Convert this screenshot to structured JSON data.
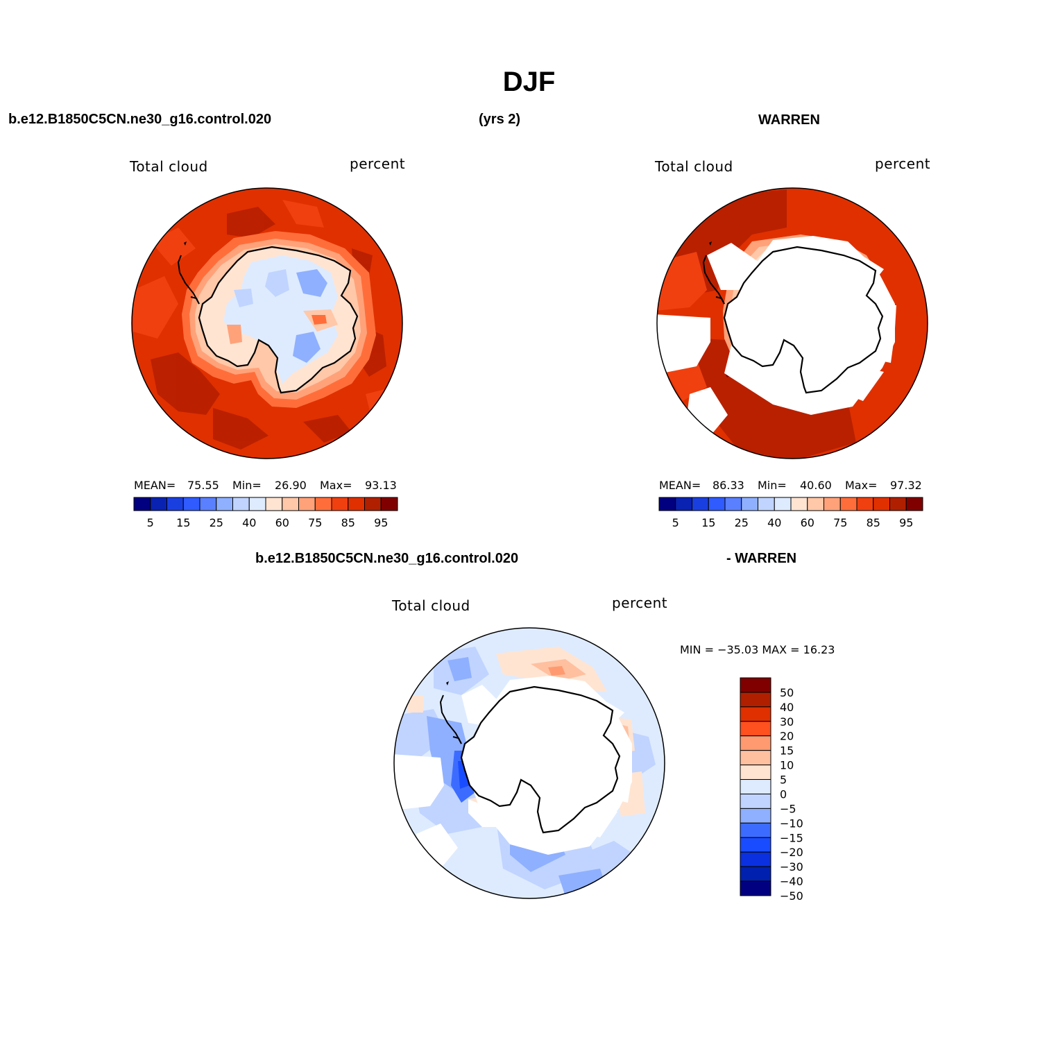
{
  "title": "DJF",
  "top_header": {
    "case_name": "b.e12.B1850C5CN.ne30_g16.control.020",
    "years": "(yrs 2)",
    "obs_name": "WARREN"
  },
  "diff_header": {
    "case_name": "b.e12.B1850C5CN.ne30_g16.control.020",
    "obs_name": "- WARREN"
  },
  "panels": [
    {
      "variable": "Total cloud",
      "units": "percent",
      "stats": {
        "mean_label": "MEAN=",
        "mean": "75.55",
        "min_label": "Min=",
        "min": "26.90",
        "max_label": "Max=",
        "max": "93.13"
      }
    },
    {
      "variable": "Total cloud",
      "units": "percent",
      "stats": {
        "mean_label": "MEAN=",
        "mean": "86.33",
        "min_label": "Min=",
        "min": "40.60",
        "max_label": "Max=",
        "max": "97.32"
      }
    },
    {
      "variable": "Total cloud",
      "units": "percent",
      "stats_text": "MIN = −35.03 MAX =   16.23"
    }
  ],
  "chart_data": [
    {
      "type": "map",
      "projection": "south-polar-stereographic",
      "title": "Total cloud",
      "units": "percent",
      "mean": 75.55,
      "min": 26.9,
      "max": 93.13,
      "colorbar": {
        "levels": [
          5,
          10,
          15,
          20,
          25,
          30,
          40,
          50,
          60,
          70,
          75,
          80,
          85,
          90,
          95
        ],
        "tick_labels": [
          "5",
          "15",
          "25",
          "40",
          "60",
          "75",
          "85",
          "95"
        ],
        "colors": [
          "#000080",
          "#0a22b2",
          "#1a3fe0",
          "#2f5bff",
          "#5a80ff",
          "#8fb0ff",
          "#c0d4ff",
          "#deebff",
          "#ffe4d2",
          "#ffc8a8",
          "#ffa27a",
          "#ff6e3a",
          "#f04010",
          "#e03000",
          "#b02000",
          "#800000"
        ]
      }
    },
    {
      "type": "map",
      "projection": "south-polar-stereographic",
      "title": "Total cloud",
      "units": "percent",
      "mean": 86.33,
      "min": 40.6,
      "max": 97.32,
      "colorbar": {
        "levels": [
          5,
          10,
          15,
          20,
          25,
          30,
          40,
          50,
          60,
          70,
          75,
          80,
          85,
          90,
          95
        ],
        "tick_labels": [
          "5",
          "15",
          "25",
          "40",
          "60",
          "75",
          "85",
          "95"
        ],
        "colors": [
          "#000080",
          "#0a22b2",
          "#1a3fe0",
          "#2f5bff",
          "#5a80ff",
          "#8fb0ff",
          "#c0d4ff",
          "#deebff",
          "#ffe4d2",
          "#ffc8a8",
          "#ffa27a",
          "#ff6e3a",
          "#f04010",
          "#e03000",
          "#b02000",
          "#800000"
        ]
      }
    },
    {
      "type": "map",
      "projection": "south-polar-stereographic",
      "title": "Total cloud",
      "units": "percent",
      "min": -35.03,
      "max": 16.23,
      "colorbar": {
        "orientation": "vertical",
        "levels": [
          50,
          40,
          30,
          20,
          15,
          10,
          5,
          0,
          -5,
          -10,
          -15,
          -20,
          -30,
          -40,
          -50
        ],
        "tick_labels": [
          "50",
          "40",
          "30",
          "20",
          "15",
          "10",
          "5",
          "0",
          "−5",
          "−10",
          "−15",
          "−20",
          "−30",
          "−40",
          "−50"
        ],
        "colors": [
          "#800000",
          "#b02000",
          "#e03000",
          "#ff5020",
          "#ff9a70",
          "#ffc0a0",
          "#ffe4d2",
          "#deebff",
          "#c0d4ff",
          "#8fb0ff",
          "#3c6cff",
          "#1a4cff",
          "#0a30e0",
          "#0020b0",
          "#000080"
        ]
      }
    }
  ]
}
